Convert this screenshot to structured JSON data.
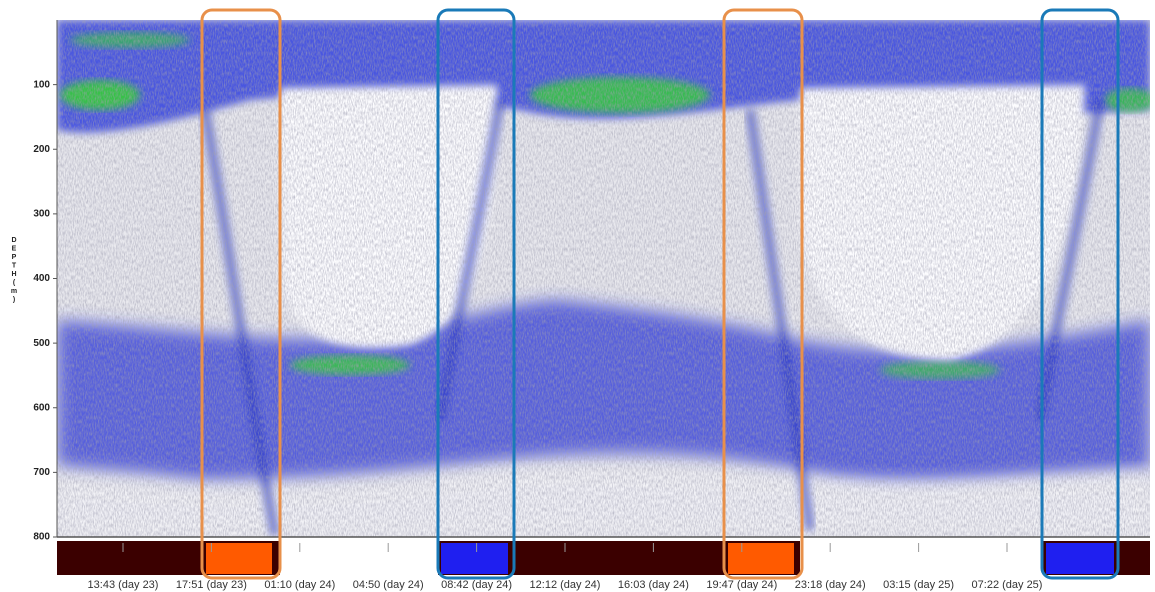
{
  "chart_data": {
    "type": "echogram",
    "ylabel": "DEPTH (m)",
    "ylim": [
      0,
      800
    ],
    "yticks": [
      100,
      200,
      300,
      400,
      500,
      600,
      700,
      800
    ],
    "categories": [
      "13:43 (day 23)",
      "17:51 (day 23)",
      "01:10 (day 24)",
      "04:50 (day 24)",
      "08:42 (day 24)",
      "12:12 (day 24)",
      "16:03 (day 24)",
      "19:47 (day 24)",
      "23:18 (day 24)",
      "03:15 (day 25)",
      "07:22 (day 25)"
    ]
  }
}
